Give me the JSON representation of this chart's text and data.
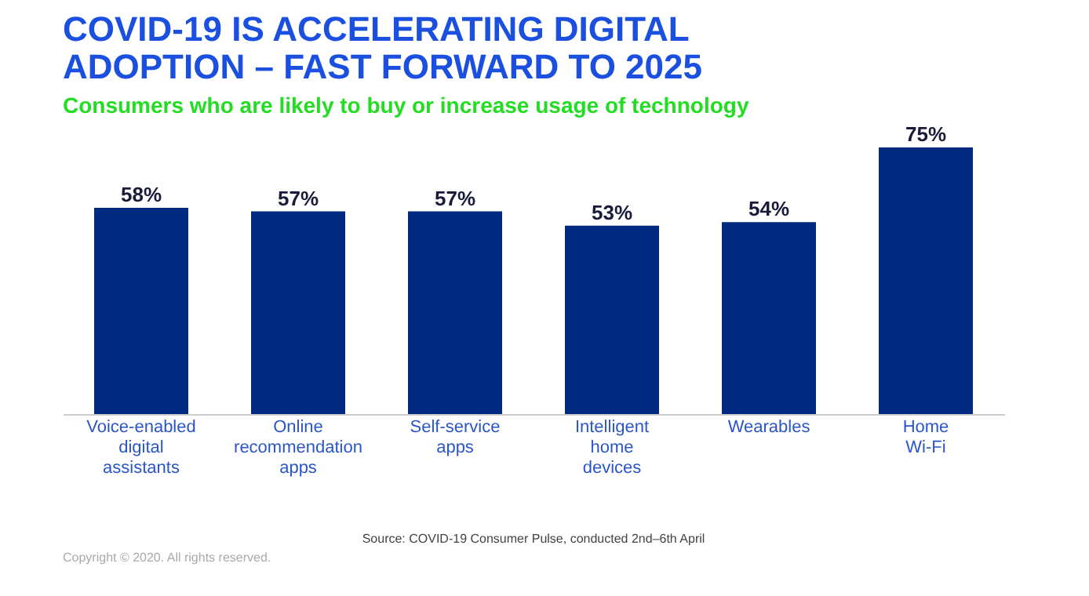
{
  "chart_data": {
    "type": "bar",
    "title": [
      "COVID-19 IS ACCELERATING DIGITAL",
      "ADOPTION – FAST FORWARD TO 2025"
    ],
    "subtitle": "Consumers who are likely to buy or increase usage of technology",
    "categories": [
      "Voice-enabled digital assistants",
      "Online recommendation apps",
      "Self-service apps",
      "Intelligent home devices",
      "Wearables",
      "Home Wi-Fi"
    ],
    "values": [
      58,
      57,
      57,
      53,
      54,
      75
    ],
    "color": "#002a7f",
    "value_labels": [
      "58%",
      "57%",
      "57%",
      "53%",
      "54%",
      "75%"
    ],
    "annotations": [
      "Source: COVID-19 Consumer Pulse, conducted 2nd–6th April",
      "Copyright © 2020. All rights reserved."
    ]
  }
}
